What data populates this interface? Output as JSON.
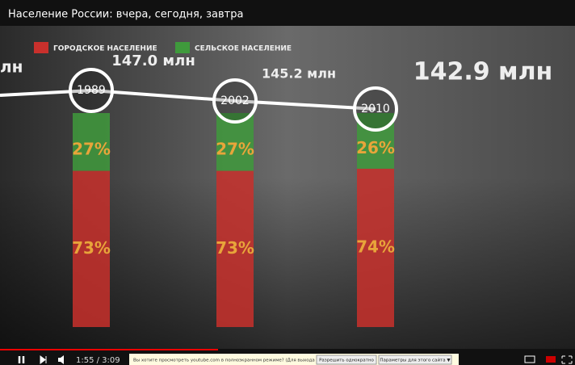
{
  "player": {
    "title": "Население России: вчера, сегодня, завтра",
    "time": "1:55 / 3:09",
    "banner": {
      "message": "Вы хотите просмотреть youtube.com в полноэкранном режиме? (Для выхода нажмите ESC.)",
      "allow": "Разрешить однократно",
      "settings": "Параметры для этого сайта ▼"
    }
  },
  "overlay": {
    "left_fragment": "лн",
    "population_labels": [
      "147.0 млн",
      "145.2 млн",
      "142.9 млн"
    ]
  },
  "chart_data": {
    "type": "stacked-bar",
    "categories": [
      "1989",
      "2002",
      "2010"
    ],
    "series": [
      {
        "name": "ГОРОДСКОЕ НАСЕЛЕНИЕ",
        "color": "#c8302c",
        "values": [
          73,
          73,
          74
        ],
        "value_labels": [
          "73%",
          "73%",
          "74%"
        ]
      },
      {
        "name": "СЕЛЬСКОЕ НАСЕЛЕНИЕ",
        "color": "#3f9a3c",
        "values": [
          27,
          27,
          26
        ],
        "value_labels": [
          "27%",
          "27%",
          "26%"
        ]
      }
    ]
  }
}
